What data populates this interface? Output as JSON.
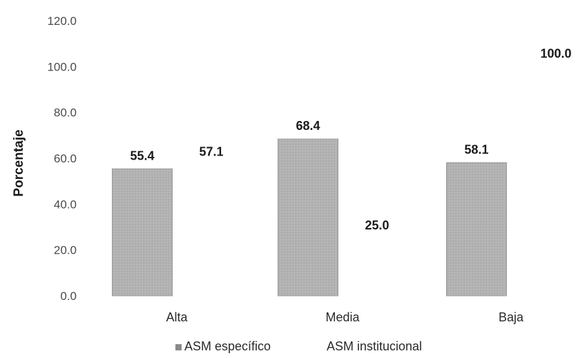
{
  "chart_data": {
    "type": "bar",
    "categories": [
      "Alta",
      "Media",
      "Baja"
    ],
    "series": [
      {
        "name": "ASM específico",
        "values": [
          55.4,
          68.4,
          58.1
        ],
        "color": "#b3b3b3"
      },
      {
        "name": "ASM institucional",
        "values": [
          57.1,
          25.0,
          100.0
        ],
        "color": "#ffffff"
      }
    ],
    "ylabel": "Porcentaje",
    "ylim": [
      0,
      120
    ],
    "yticks": [
      "0.0",
      "20.0",
      "40.0",
      "60.0",
      "80.0",
      "100.0",
      "120.0"
    ],
    "data_labels": [
      [
        "55.4",
        "68.4",
        "58.1"
      ],
      [
        "57.1",
        "25.0",
        "100.0"
      ]
    ],
    "grid": false,
    "legend": "bottom"
  }
}
